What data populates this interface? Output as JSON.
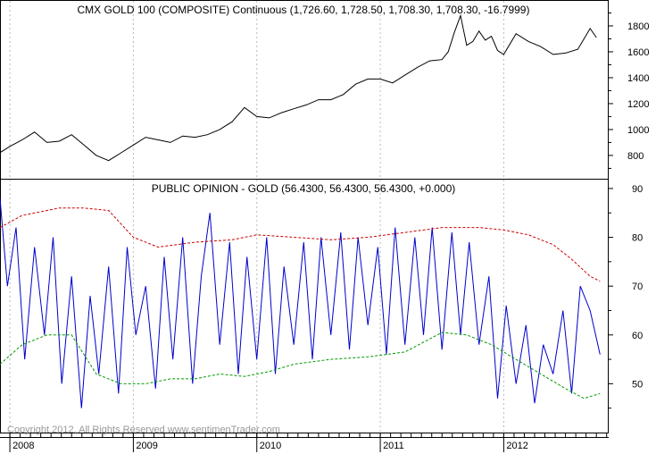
{
  "chart_data": [
    {
      "type": "line",
      "title": "CMX GOLD 100 (COMPOSITE) Continuous (1,726.60, 1,728.50, 1,708.30, 1,708.30, -16.7999)",
      "ylim": [
        620,
        2000
      ],
      "yticks": [
        800,
        1000,
        1200,
        1400,
        1600,
        1800
      ],
      "grid": "vertical dashed at year boundaries",
      "line_color": "#000000",
      "x": [
        2007.85,
        2008.0,
        2008.1,
        2008.2,
        2008.3,
        2008.4,
        2008.5,
        2008.6,
        2008.7,
        2008.8,
        2008.9,
        2009.0,
        2009.1,
        2009.2,
        2009.3,
        2009.4,
        2009.5,
        2009.6,
        2009.7,
        2009.8,
        2009.9,
        2010.0,
        2010.1,
        2010.2,
        2010.3,
        2010.4,
        2010.5,
        2010.6,
        2010.7,
        2010.8,
        2010.9,
        2011.0,
        2011.1,
        2011.2,
        2011.3,
        2011.4,
        2011.5,
        2011.55,
        2011.6,
        2011.65,
        2011.7,
        2011.75,
        2011.8,
        2011.85,
        2011.9,
        2011.95,
        2012.0,
        2012.1,
        2012.2,
        2012.3,
        2012.4,
        2012.5,
        2012.6,
        2012.7,
        2012.75
      ],
      "y": [
        780,
        870,
        920,
        980,
        900,
        910,
        960,
        880,
        800,
        760,
        820,
        880,
        940,
        920,
        900,
        950,
        940,
        960,
        1000,
        1060,
        1170,
        1100,
        1090,
        1130,
        1160,
        1190,
        1230,
        1230,
        1270,
        1350,
        1390,
        1390,
        1360,
        1420,
        1480,
        1530,
        1540,
        1600,
        1750,
        1880,
        1650,
        1680,
        1760,
        1690,
        1720,
        1610,
        1580,
        1740,
        1680,
        1640,
        1580,
        1590,
        1620,
        1780,
        1710
      ]
    },
    {
      "type": "line",
      "title": "PUBLIC OPINION - GOLD (56.4300, 56.4300, 56.4300, +0.000)",
      "ylim": [
        40,
        92
      ],
      "yticks": [
        50,
        60,
        70,
        80,
        90
      ],
      "xlim": [
        2007.92,
        2012.85
      ],
      "xticks": [
        2008,
        2009,
        2010,
        2011,
        2012
      ],
      "xtick_labels": [
        "2008",
        "2009",
        "2010",
        "2011",
        "2012"
      ],
      "grid": "vertical dashed at year boundaries",
      "series": [
        {
          "color": "#0000cc",
          "style": "solid",
          "x": [
            2007.92,
            2007.98,
            2008.05,
            2008.12,
            2008.2,
            2008.28,
            2008.35,
            2008.42,
            2008.5,
            2008.58,
            2008.65,
            2008.72,
            2008.8,
            2008.88,
            2008.95,
            2009.02,
            2009.1,
            2009.18,
            2009.25,
            2009.32,
            2009.4,
            2009.48,
            2009.55,
            2009.62,
            2009.7,
            2009.78,
            2009.85,
            2009.92,
            2010.0,
            2010.08,
            2010.15,
            2010.22,
            2010.3,
            2010.38,
            2010.45,
            2010.52,
            2010.6,
            2010.68,
            2010.75,
            2010.82,
            2010.9,
            2010.98,
            2011.05,
            2011.12,
            2011.2,
            2011.28,
            2011.35,
            2011.42,
            2011.5,
            2011.58,
            2011.65,
            2011.72,
            2011.8,
            2011.88,
            2011.95,
            2012.02,
            2012.1,
            2012.18,
            2012.25,
            2012.32,
            2012.4,
            2012.48,
            2012.55,
            2012.62,
            2012.7,
            2012.78
          ],
          "y": [
            88,
            70,
            82,
            55,
            78,
            60,
            80,
            50,
            72,
            45,
            68,
            52,
            74,
            48,
            78,
            60,
            70,
            49,
            76,
            55,
            80,
            50,
            72,
            85,
            58,
            79,
            52,
            76,
            55,
            80,
            52,
            74,
            58,
            79,
            55,
            80,
            60,
            81,
            57,
            80,
            62,
            78,
            56,
            82,
            58,
            80,
            60,
            82,
            57,
            81,
            60,
            79,
            58,
            72,
            47,
            66,
            50,
            62,
            46,
            58,
            52,
            65,
            48,
            70,
            65,
            56
          ]
        },
        {
          "color": "#cc0000",
          "style": "dashed",
          "x": [
            2007.92,
            2008.1,
            2008.4,
            2008.6,
            2008.8,
            2009.0,
            2009.2,
            2009.5,
            2009.8,
            2010.0,
            2010.3,
            2010.6,
            2010.9,
            2011.2,
            2011.5,
            2011.8,
            2012.0,
            2012.2,
            2012.4,
            2012.55,
            2012.7,
            2012.78
          ],
          "y": [
            82,
            84.5,
            86,
            86,
            85.5,
            80,
            78,
            79,
            79.5,
            80.5,
            80,
            79.5,
            80,
            81,
            82,
            82,
            81.5,
            80.5,
            78.5,
            75.5,
            72,
            71
          ]
        },
        {
          "color": "#009900",
          "style": "dashed",
          "x": [
            2007.92,
            2008.1,
            2008.3,
            2008.5,
            2008.7,
            2008.9,
            2009.1,
            2009.3,
            2009.5,
            2009.7,
            2009.9,
            2010.1,
            2010.3,
            2010.6,
            2010.9,
            2011.2,
            2011.5,
            2011.7,
            2011.9,
            2012.1,
            2012.3,
            2012.5,
            2012.65,
            2012.78
          ],
          "y": [
            54,
            58,
            60,
            60,
            52,
            50,
            50,
            51,
            51,
            52,
            51.5,
            52.5,
            54,
            55,
            55.5,
            56.5,
            60.5,
            60,
            58,
            55,
            52,
            49,
            47,
            48
          ]
        }
      ]
    }
  ],
  "footer": {
    "copyright": "Copyright 2012, All Rights Reserved  www.sentimenTrader.com"
  }
}
